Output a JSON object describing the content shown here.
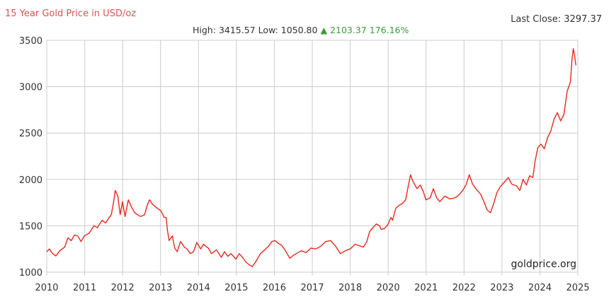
{
  "header": {
    "title": "15 Year Gold Price in USD/oz",
    "high_label": "High:",
    "high_value": "3415.57",
    "low_label": "Low:",
    "low_value": "1050.80",
    "change_arrow": "▲",
    "change_value": "2103.37",
    "change_pct": "176.16%",
    "last_close_label": "Last Close:",
    "last_close_value": "3297.37"
  },
  "watermark": "goldprice.org",
  "colors": {
    "line": "#e8281e",
    "grid": "#cccccc",
    "title": "#d9534f",
    "up": "#3c9a3c",
    "text": "#333333"
  },
  "chart_data": {
    "type": "line",
    "title": "15 Year Gold Price in USD/oz",
    "xlabel": "",
    "ylabel": "",
    "x_tick_labels": [
      "2010",
      "2011",
      "2012",
      "2013",
      "2014",
      "2015",
      "2016",
      "2017",
      "2018",
      "2020",
      "2021",
      "2022",
      "2023",
      "2024",
      "2025"
    ],
    "y_ticks": [
      1000,
      1500,
      2000,
      2500,
      3000,
      3500
    ],
    "ylim": [
      1000,
      3500
    ],
    "grid": true,
    "legend": "none",
    "stats": {
      "high": 3415.57,
      "low": 1050.8,
      "change": 2103.37,
      "change_pct": 176.16,
      "last_close": 3297.37
    },
    "series": [
      {
        "name": "Gold Price (USD/oz)",
        "points_note": "x = axis slot index (0 = 2010 gridline, 14 = 2025 gridline)",
        "points": [
          [
            0.0,
            1220
          ],
          [
            0.08,
            1250
          ],
          [
            0.18,
            1200
          ],
          [
            0.28,
            1175
          ],
          [
            0.4,
            1230
          ],
          [
            0.55,
            1270
          ],
          [
            0.65,
            1370
          ],
          [
            0.75,
            1340
          ],
          [
            0.85,
            1400
          ],
          [
            0.95,
            1390
          ],
          [
            1.05,
            1330
          ],
          [
            1.15,
            1390
          ],
          [
            1.3,
            1420
          ],
          [
            1.45,
            1500
          ],
          [
            1.55,
            1480
          ],
          [
            1.7,
            1560
          ],
          [
            1.8,
            1530
          ],
          [
            1.9,
            1580
          ],
          [
            1.98,
            1620
          ],
          [
            2.05,
            1760
          ],
          [
            2.1,
            1880
          ],
          [
            2.18,
            1820
          ],
          [
            2.25,
            1620
          ],
          [
            2.32,
            1760
          ],
          [
            2.4,
            1600
          ],
          [
            2.5,
            1780
          ],
          [
            2.6,
            1700
          ],
          [
            2.7,
            1640
          ],
          [
            2.78,
            1620
          ],
          [
            2.88,
            1600
          ],
          [
            3.0,
            1620
          ],
          [
            3.08,
            1720
          ],
          [
            3.15,
            1780
          ],
          [
            3.25,
            1730
          ],
          [
            3.35,
            1700
          ],
          [
            3.5,
            1660
          ],
          [
            3.6,
            1590
          ],
          [
            3.66,
            1590
          ],
          [
            3.7,
            1450
          ],
          [
            3.75,
            1340
          ],
          [
            3.85,
            1390
          ],
          [
            3.92,
            1260
          ],
          [
            4.0,
            1220
          ],
          [
            4.1,
            1330
          ],
          [
            4.22,
            1270
          ],
          [
            4.3,
            1250
          ],
          [
            4.4,
            1200
          ],
          [
            4.5,
            1220
          ],
          [
            4.6,
            1320
          ],
          [
            4.72,
            1250
          ],
          [
            4.8,
            1300
          ],
          [
            4.95,
            1260
          ],
          [
            5.05,
            1200
          ],
          [
            5.2,
            1240
          ],
          [
            5.35,
            1160
          ],
          [
            5.45,
            1220
          ],
          [
            5.55,
            1170
          ],
          [
            5.65,
            1200
          ],
          [
            5.8,
            1140
          ],
          [
            5.9,
            1200
          ],
          [
            6.0,
            1160
          ],
          [
            6.1,
            1110
          ],
          [
            6.2,
            1080
          ],
          [
            6.3,
            1060
          ],
          [
            6.4,
            1110
          ],
          [
            6.55,
            1200
          ],
          [
            6.65,
            1230
          ],
          [
            6.8,
            1280
          ],
          [
            6.9,
            1330
          ],
          [
            7.0,
            1340
          ],
          [
            7.1,
            1310
          ],
          [
            7.2,
            1290
          ],
          [
            7.3,
            1240
          ],
          [
            7.45,
            1150
          ],
          [
            7.55,
            1180
          ],
          [
            7.65,
            1200
          ],
          [
            7.8,
            1230
          ],
          [
            7.95,
            1210
          ],
          [
            8.1,
            1260
          ],
          [
            8.25,
            1250
          ],
          [
            8.4,
            1280
          ],
          [
            8.55,
            1330
          ],
          [
            8.7,
            1340
          ],
          [
            8.85,
            1280
          ],
          [
            9.0,
            1200
          ],
          [
            9.15,
            1230
          ],
          [
            9.3,
            1250
          ],
          [
            9.45,
            1300
          ],
          [
            9.55,
            1290
          ],
          [
            9.7,
            1270
          ],
          [
            9.8,
            1320
          ],
          [
            9.9,
            1440
          ],
          [
            10.0,
            1480
          ],
          [
            10.1,
            1520
          ],
          [
            10.2,
            1500
          ],
          [
            10.25,
            1460
          ],
          [
            10.35,
            1470
          ],
          [
            10.45,
            1510
          ],
          [
            10.55,
            1590
          ],
          [
            10.6,
            1560
          ],
          [
            10.7,
            1690
          ],
          [
            10.8,
            1720
          ],
          [
            10.9,
            1740
          ],
          [
            11.0,
            1780
          ],
          [
            11.1,
            1960
          ],
          [
            11.15,
            2050
          ],
          [
            11.22,
            1980
          ],
          [
            11.35,
            1900
          ],
          [
            11.45,
            1940
          ],
          [
            11.55,
            1860
          ],
          [
            11.62,
            1780
          ],
          [
            11.75,
            1800
          ],
          [
            11.85,
            1900
          ],
          [
            11.95,
            1800
          ],
          [
            12.05,
            1760
          ],
          [
            12.2,
            1820
          ],
          [
            12.35,
            1790
          ],
          [
            12.5,
            1800
          ],
          [
            12.6,
            1820
          ],
          [
            12.75,
            1880
          ],
          [
            12.85,
            1940
          ],
          [
            12.95,
            2050
          ],
          [
            13.05,
            1950
          ],
          [
            13.15,
            1900
          ],
          [
            13.3,
            1840
          ],
          [
            13.4,
            1760
          ],
          [
            13.5,
            1670
          ],
          [
            13.6,
            1640
          ],
          [
            13.7,
            1740
          ],
          [
            13.8,
            1860
          ],
          [
            13.9,
            1920
          ],
          [
            14.0,
            1960
          ],
          [
            14.15,
            2020
          ],
          [
            14.25,
            1950
          ],
          [
            14.4,
            1930
          ],
          [
            14.5,
            1880
          ],
          [
            14.6,
            2000
          ],
          [
            14.7,
            1940
          ],
          [
            14.8,
            2040
          ],
          [
            14.9,
            2020
          ],
          [
            14.97,
            2200
          ],
          [
            15.05,
            2340
          ],
          [
            15.15,
            2380
          ],
          [
            15.25,
            2330
          ],
          [
            15.35,
            2450
          ],
          [
            15.45,
            2520
          ],
          [
            15.55,
            2650
          ],
          [
            15.65,
            2720
          ],
          [
            15.75,
            2630
          ],
          [
            15.85,
            2700
          ],
          [
            15.95,
            2950
          ],
          [
            16.05,
            3050
          ],
          [
            16.1,
            3300
          ],
          [
            16.14,
            3410
          ],
          [
            16.18,
            3330
          ],
          [
            16.22,
            3230
          ]
        ]
      }
    ]
  }
}
